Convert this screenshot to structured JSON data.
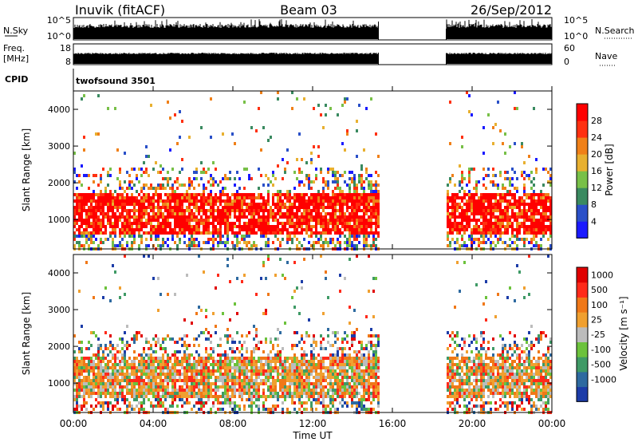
{
  "header": {
    "station": "Inuvik (fitACF)",
    "beam": "Beam 03",
    "date": "26/Sep/2012"
  },
  "status_panels": {
    "nsky": {
      "label": "N.Sky",
      "ticks": [
        "10^5",
        "10^0"
      ]
    },
    "nsearch": {
      "label": "N.Search",
      "ticks": [
        "10^5",
        "10^0"
      ]
    },
    "freq": {
      "label_top": "Freq.",
      "label_bottom": "[MHz]",
      "ticks": [
        "18",
        "8"
      ]
    },
    "nave": {
      "label": "Nave",
      "ticks": [
        "60",
        "0"
      ]
    },
    "cpid": {
      "label": "CPID",
      "program": "twofsound 3501"
    }
  },
  "chart_data": [
    {
      "type": "heatmap",
      "name": "power",
      "ylabel": "Slant Range [km]",
      "yticks": [
        "1000",
        "2000",
        "3000",
        "4000"
      ],
      "ylim": [
        200,
        4500
      ],
      "xlim_hours": [
        0,
        24
      ],
      "colorbar": {
        "label": "Power [dB]",
        "ticks": [
          "4",
          "8",
          "12",
          "16",
          "20",
          "24",
          "28"
        ],
        "colors": [
          "#1a1aff",
          "#2a50c8",
          "#3a8a60",
          "#78c048",
          "#e8b030",
          "#f08018",
          "#ff3010",
          "#ff0000"
        ]
      },
      "data_gap_hours": [
        15.3,
        18.7
      ],
      "dominant_echo_band_km": [
        600,
        1800
      ]
    },
    {
      "type": "heatmap",
      "name": "velocity",
      "ylabel": "Slant Range [km]",
      "yticks": [
        "1000",
        "2000",
        "3000",
        "4000"
      ],
      "ylim": [
        200,
        4500
      ],
      "xlim_hours": [
        0,
        24
      ],
      "colorbar": {
        "label": "Velocity [m s⁻¹]",
        "ticks": [
          "1000",
          "500",
          "100",
          "25",
          "-25",
          "-100",
          "-500",
          "-1000"
        ],
        "colors": [
          "#1c3ca8",
          "#2e6aa0",
          "#3f9a66",
          "#6cc23c",
          "#bcbcbc",
          "#f0a030",
          "#f07818",
          "#ff2a1a",
          "#e00000"
        ]
      },
      "data_gap_hours": [
        15.3,
        18.7
      ],
      "dominant_echo_band_km": [
        600,
        1800
      ]
    }
  ],
  "xaxis": {
    "ticks": [
      "00:00",
      "04:00",
      "08:00",
      "12:00",
      "16:00",
      "20:00",
      "00:00"
    ],
    "label": "Time UT"
  }
}
